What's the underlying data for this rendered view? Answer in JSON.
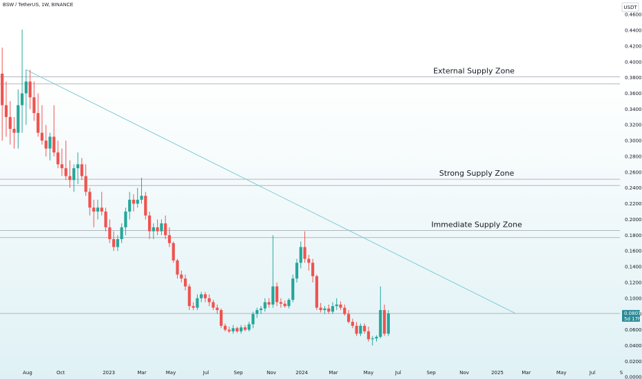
{
  "symbol_label": "BSW / TetherUS, 1W, BINANCE",
  "chart_data": {
    "type": "candlestick",
    "title": "BSW / TetherUS, 1W, BINANCE",
    "currency_label": "USDT",
    "ylim": [
      -0.0025,
      0.4785
    ],
    "y_ticks": [
      "0.4600",
      "0.4400",
      "0.4200",
      "0.4000",
      "0.3800",
      "0.3600",
      "0.3400",
      "0.3200",
      "0.3000",
      "0.2800",
      "0.2600",
      "0.2400",
      "0.2200",
      "0.2000",
      "0.1800",
      "0.1600",
      "0.1400",
      "0.1200",
      "0.1000",
      "0.0800",
      "0.0600",
      "0.0400",
      "0.0200",
      "0.0000"
    ],
    "x_ticks": [
      "Aug",
      "Oct",
      "2023",
      "Mar",
      "May",
      "Jul",
      "Sep",
      "Nov",
      "2024",
      "Mar",
      "May",
      "Jul",
      "Sep",
      "Nov",
      "2025",
      "Mar",
      "May",
      "Jul",
      "S"
    ],
    "last_price_label": [
      "0.0807",
      "5d 17h"
    ],
    "last_price": 0.0807,
    "zones": [
      {
        "label": "External Supply Zone",
        "top": 0.381,
        "bottom": 0.372
      },
      {
        "label": "Strong Supply Zone",
        "top": 0.251,
        "bottom": 0.243
      },
      {
        "label": "Immediate Supply Zone",
        "top": 0.186,
        "bottom": 0.177
      }
    ],
    "trendline": {
      "from": {
        "week": 6,
        "price": 0.39
      },
      "to": {
        "week": 129,
        "price": 0.0805
      }
    },
    "colors": {
      "up": "#26a69a",
      "down": "#ef5350",
      "trend": "#7ecbcf",
      "zone_line": "#b2b5be",
      "axis_text": "#131722",
      "price_tag": "#2a8a96"
    },
    "candles": [
      {
        "o": 0.385,
        "h": 0.418,
        "l": 0.3,
        "c": 0.345
      },
      {
        "o": 0.345,
        "h": 0.375,
        "l": 0.305,
        "c": 0.33
      },
      {
        "o": 0.33,
        "h": 0.35,
        "l": 0.295,
        "c": 0.315
      },
      {
        "o": 0.315,
        "h": 0.33,
        "l": 0.29,
        "c": 0.31
      },
      {
        "o": 0.31,
        "h": 0.365,
        "l": 0.29,
        "c": 0.345
      },
      {
        "o": 0.345,
        "h": 0.441,
        "l": 0.31,
        "c": 0.36
      },
      {
        "o": 0.36,
        "h": 0.39,
        "l": 0.32,
        "c": 0.375
      },
      {
        "o": 0.375,
        "h": 0.39,
        "l": 0.34,
        "c": 0.355
      },
      {
        "o": 0.355,
        "h": 0.375,
        "l": 0.325,
        "c": 0.335
      },
      {
        "o": 0.335,
        "h": 0.36,
        "l": 0.305,
        "c": 0.31
      },
      {
        "o": 0.31,
        "h": 0.345,
        "l": 0.295,
        "c": 0.3
      },
      {
        "o": 0.3,
        "h": 0.32,
        "l": 0.28,
        "c": 0.29
      },
      {
        "o": 0.29,
        "h": 0.31,
        "l": 0.275,
        "c": 0.305
      },
      {
        "o": 0.305,
        "h": 0.345,
        "l": 0.28,
        "c": 0.285
      },
      {
        "o": 0.285,
        "h": 0.3,
        "l": 0.265,
        "c": 0.27
      },
      {
        "o": 0.27,
        "h": 0.29,
        "l": 0.255,
        "c": 0.265
      },
      {
        "o": 0.265,
        "h": 0.3,
        "l": 0.25,
        "c": 0.255
      },
      {
        "o": 0.255,
        "h": 0.275,
        "l": 0.24,
        "c": 0.25
      },
      {
        "o": 0.25,
        "h": 0.27,
        "l": 0.235,
        "c": 0.265
      },
      {
        "o": 0.265,
        "h": 0.285,
        "l": 0.245,
        "c": 0.27
      },
      {
        "o": 0.27,
        "h": 0.278,
        "l": 0.25,
        "c": 0.255
      },
      {
        "o": 0.255,
        "h": 0.27,
        "l": 0.23,
        "c": 0.235
      },
      {
        "o": 0.235,
        "h": 0.24,
        "l": 0.205,
        "c": 0.215
      },
      {
        "o": 0.215,
        "h": 0.225,
        "l": 0.19,
        "c": 0.21
      },
      {
        "o": 0.21,
        "h": 0.225,
        "l": 0.2,
        "c": 0.215
      },
      {
        "o": 0.215,
        "h": 0.235,
        "l": 0.205,
        "c": 0.21
      },
      {
        "o": 0.21,
        "h": 0.215,
        "l": 0.185,
        "c": 0.19
      },
      {
        "o": 0.19,
        "h": 0.2,
        "l": 0.17,
        "c": 0.175
      },
      {
        "o": 0.175,
        "h": 0.185,
        "l": 0.16,
        "c": 0.165
      },
      {
        "o": 0.165,
        "h": 0.18,
        "l": 0.16,
        "c": 0.175
      },
      {
        "o": 0.175,
        "h": 0.195,
        "l": 0.17,
        "c": 0.19
      },
      {
        "o": 0.19,
        "h": 0.215,
        "l": 0.18,
        "c": 0.21
      },
      {
        "o": 0.21,
        "h": 0.235,
        "l": 0.2,
        "c": 0.225
      },
      {
        "o": 0.225,
        "h": 0.232,
        "l": 0.21,
        "c": 0.22
      },
      {
        "o": 0.22,
        "h": 0.24,
        "l": 0.215,
        "c": 0.225
      },
      {
        "o": 0.225,
        "h": 0.253,
        "l": 0.22,
        "c": 0.23
      },
      {
        "o": 0.23,
        "h": 0.235,
        "l": 0.2,
        "c": 0.205
      },
      {
        "o": 0.205,
        "h": 0.21,
        "l": 0.175,
        "c": 0.185
      },
      {
        "o": 0.185,
        "h": 0.195,
        "l": 0.175,
        "c": 0.19
      },
      {
        "o": 0.19,
        "h": 0.2,
        "l": 0.18,
        "c": 0.185
      },
      {
        "o": 0.185,
        "h": 0.2,
        "l": 0.18,
        "c": 0.195
      },
      {
        "o": 0.195,
        "h": 0.205,
        "l": 0.175,
        "c": 0.18
      },
      {
        "o": 0.18,
        "h": 0.19,
        "l": 0.165,
        "c": 0.17
      },
      {
        "o": 0.17,
        "h": 0.172,
        "l": 0.145,
        "c": 0.148
      },
      {
        "o": 0.148,
        "h": 0.15,
        "l": 0.125,
        "c": 0.13
      },
      {
        "o": 0.13,
        "h": 0.135,
        "l": 0.12,
        "c": 0.125
      },
      {
        "o": 0.125,
        "h": 0.13,
        "l": 0.11,
        "c": 0.115
      },
      {
        "o": 0.115,
        "h": 0.118,
        "l": 0.085,
        "c": 0.09
      },
      {
        "o": 0.09,
        "h": 0.095,
        "l": 0.085,
        "c": 0.088
      },
      {
        "o": 0.088,
        "h": 0.105,
        "l": 0.085,
        "c": 0.1
      },
      {
        "o": 0.1,
        "h": 0.108,
        "l": 0.095,
        "c": 0.105
      },
      {
        "o": 0.105,
        "h": 0.108,
        "l": 0.095,
        "c": 0.1
      },
      {
        "o": 0.1,
        "h": 0.105,
        "l": 0.09,
        "c": 0.095
      },
      {
        "o": 0.095,
        "h": 0.098,
        "l": 0.085,
        "c": 0.088
      },
      {
        "o": 0.088,
        "h": 0.092,
        "l": 0.08,
        "c": 0.085
      },
      {
        "o": 0.085,
        "h": 0.087,
        "l": 0.062,
        "c": 0.065
      },
      {
        "o": 0.065,
        "h": 0.068,
        "l": 0.058,
        "c": 0.06
      },
      {
        "o": 0.06,
        "h": 0.064,
        "l": 0.056,
        "c": 0.058
      },
      {
        "o": 0.058,
        "h": 0.066,
        "l": 0.055,
        "c": 0.062
      },
      {
        "o": 0.062,
        "h": 0.064,
        "l": 0.056,
        "c": 0.058
      },
      {
        "o": 0.058,
        "h": 0.066,
        "l": 0.055,
        "c": 0.063
      },
      {
        "o": 0.063,
        "h": 0.066,
        "l": 0.058,
        "c": 0.06
      },
      {
        "o": 0.06,
        "h": 0.07,
        "l": 0.058,
        "c": 0.067
      },
      {
        "o": 0.067,
        "h": 0.083,
        "l": 0.062,
        "c": 0.08
      },
      {
        "o": 0.08,
        "h": 0.088,
        "l": 0.075,
        "c": 0.085
      },
      {
        "o": 0.085,
        "h": 0.09,
        "l": 0.08,
        "c": 0.087
      },
      {
        "o": 0.087,
        "h": 0.1,
        "l": 0.083,
        "c": 0.095
      },
      {
        "o": 0.095,
        "h": 0.1,
        "l": 0.088,
        "c": 0.092
      },
      {
        "o": 0.092,
        "h": 0.18,
        "l": 0.088,
        "c": 0.115
      },
      {
        "o": 0.115,
        "h": 0.12,
        "l": 0.09,
        "c": 0.095
      },
      {
        "o": 0.095,
        "h": 0.1,
        "l": 0.088,
        "c": 0.093
      },
      {
        "o": 0.093,
        "h": 0.097,
        "l": 0.088,
        "c": 0.09
      },
      {
        "o": 0.09,
        "h": 0.1,
        "l": 0.087,
        "c": 0.098
      },
      {
        "o": 0.098,
        "h": 0.13,
        "l": 0.095,
        "c": 0.125
      },
      {
        "o": 0.125,
        "h": 0.15,
        "l": 0.12,
        "c": 0.145
      },
      {
        "o": 0.145,
        "h": 0.172,
        "l": 0.138,
        "c": 0.165
      },
      {
        "o": 0.165,
        "h": 0.185,
        "l": 0.145,
        "c": 0.15
      },
      {
        "o": 0.15,
        "h": 0.155,
        "l": 0.135,
        "c": 0.145
      },
      {
        "o": 0.145,
        "h": 0.15,
        "l": 0.12,
        "c": 0.128
      },
      {
        "o": 0.128,
        "h": 0.13,
        "l": 0.085,
        "c": 0.088
      },
      {
        "o": 0.088,
        "h": 0.094,
        "l": 0.082,
        "c": 0.085
      },
      {
        "o": 0.085,
        "h": 0.09,
        "l": 0.08,
        "c": 0.087
      },
      {
        "o": 0.087,
        "h": 0.092,
        "l": 0.08,
        "c": 0.083
      },
      {
        "o": 0.083,
        "h": 0.095,
        "l": 0.08,
        "c": 0.09
      },
      {
        "o": 0.09,
        "h": 0.1,
        "l": 0.085,
        "c": 0.092
      },
      {
        "o": 0.092,
        "h": 0.096,
        "l": 0.085,
        "c": 0.088
      },
      {
        "o": 0.088,
        "h": 0.092,
        "l": 0.078,
        "c": 0.08
      },
      {
        "o": 0.08,
        "h": 0.085,
        "l": 0.068,
        "c": 0.07
      },
      {
        "o": 0.07,
        "h": 0.074,
        "l": 0.062,
        "c": 0.065
      },
      {
        "o": 0.065,
        "h": 0.07,
        "l": 0.052,
        "c": 0.055
      },
      {
        "o": 0.055,
        "h": 0.068,
        "l": 0.052,
        "c": 0.065
      },
      {
        "o": 0.065,
        "h": 0.068,
        "l": 0.055,
        "c": 0.058
      },
      {
        "o": 0.058,
        "h": 0.064,
        "l": 0.045,
        "c": 0.048
      },
      {
        "o": 0.048,
        "h": 0.052,
        "l": 0.04,
        "c": 0.049
      },
      {
        "o": 0.049,
        "h": 0.053,
        "l": 0.045,
        "c": 0.051
      },
      {
        "o": 0.051,
        "h": 0.115,
        "l": 0.049,
        "c": 0.085
      },
      {
        "o": 0.085,
        "h": 0.092,
        "l": 0.052,
        "c": 0.055
      },
      {
        "o": 0.055,
        "h": 0.085,
        "l": 0.052,
        "c": 0.0807
      }
    ]
  }
}
